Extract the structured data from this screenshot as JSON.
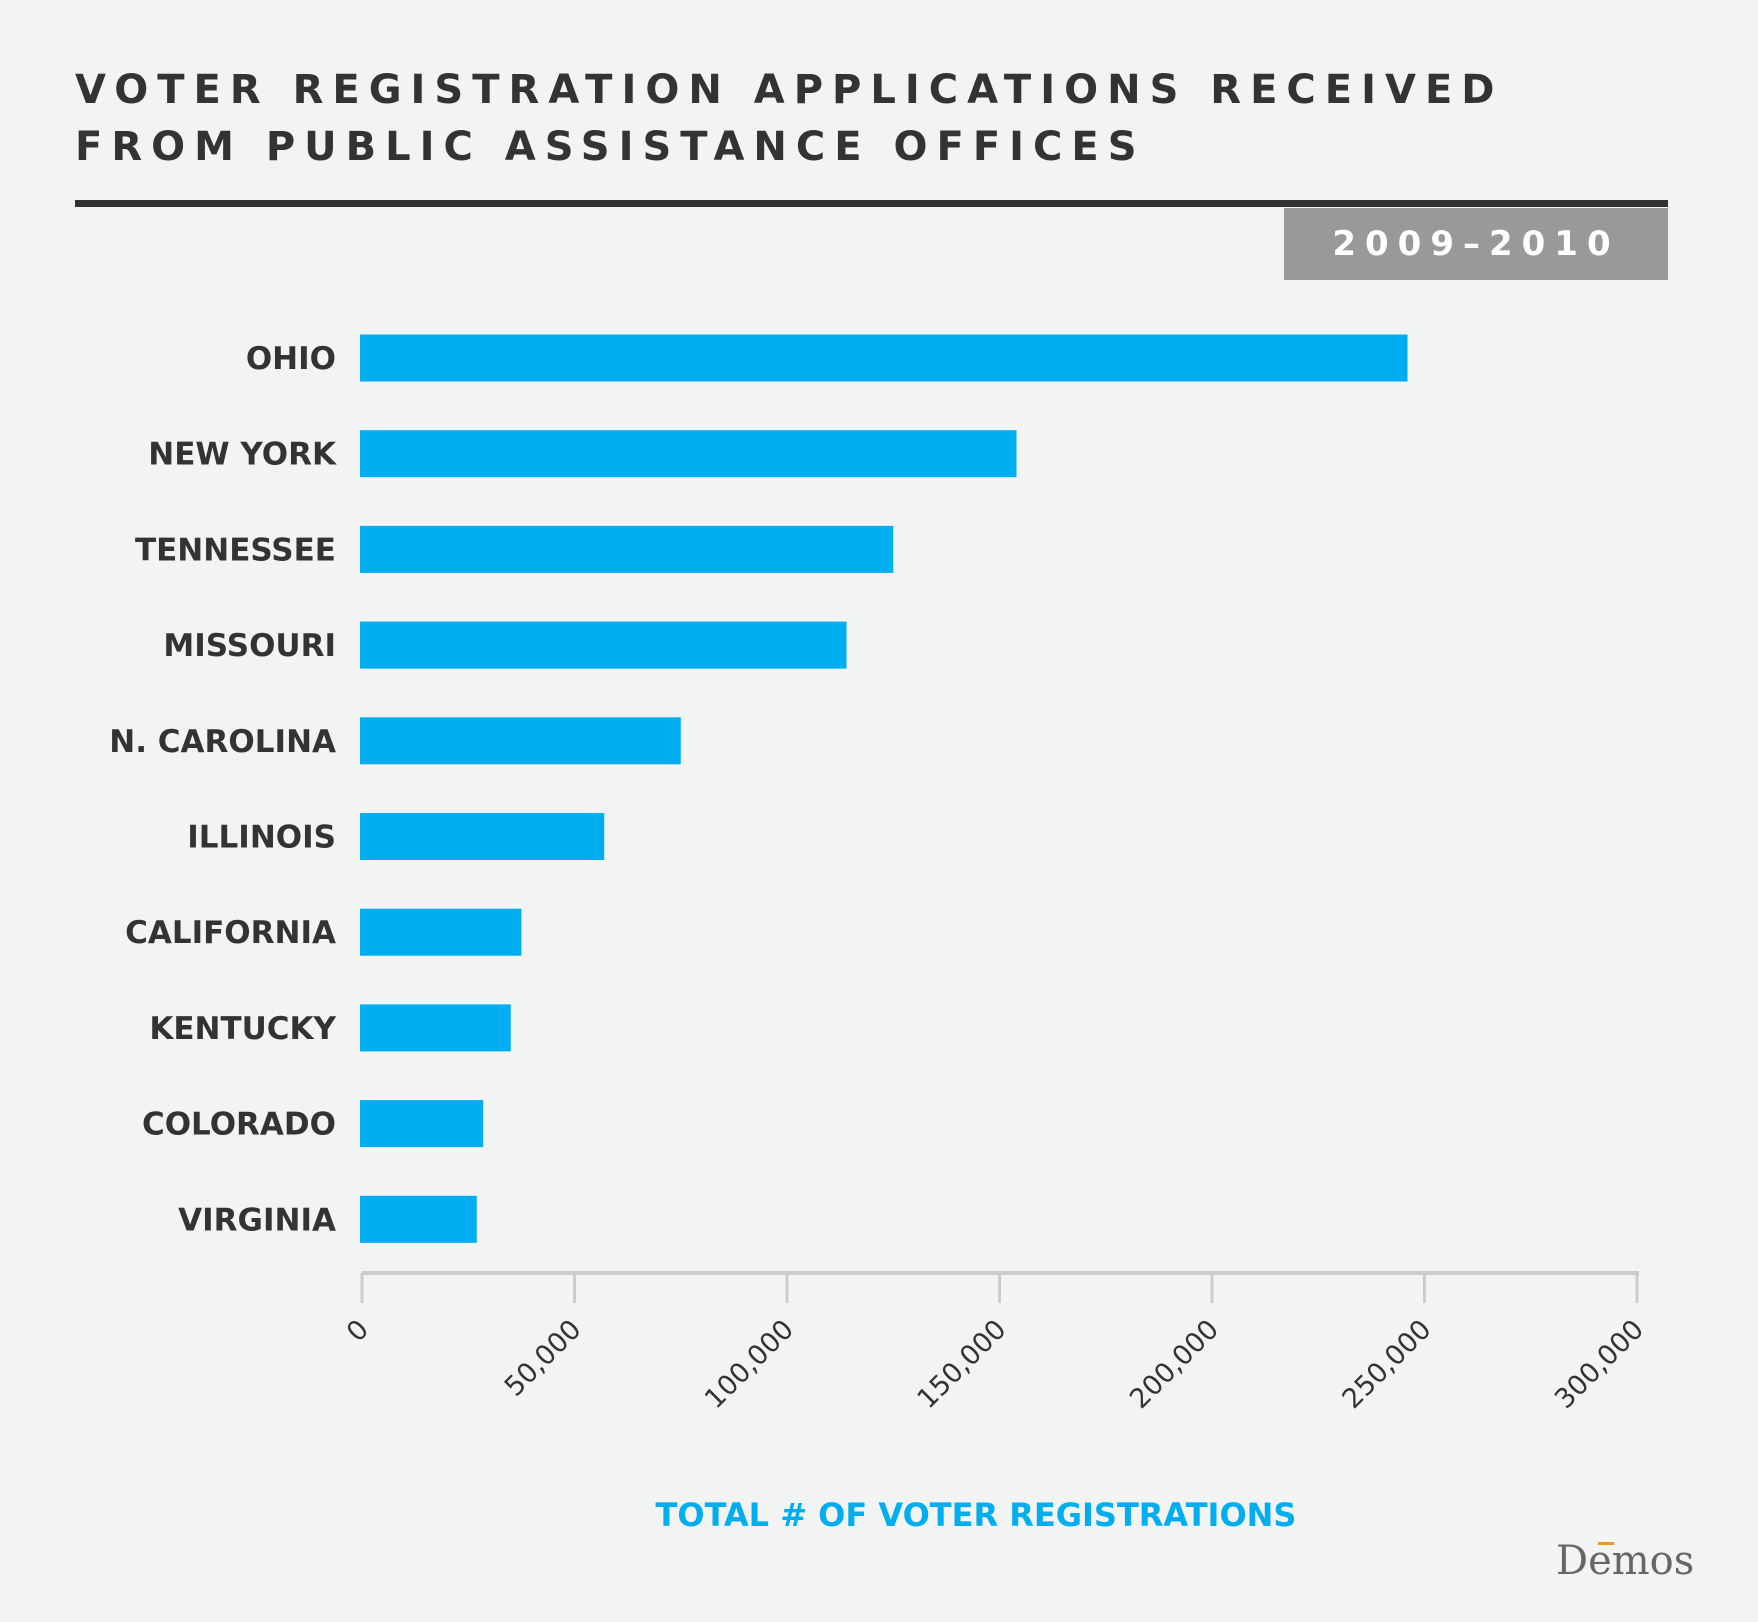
{
  "chart_data": {
    "type": "bar",
    "orientation": "horizontal",
    "title": "VOTER REGISTRATION APPLICATIONS RECEIVED FROM PUBLIC ASSISTANCE OFFICES",
    "title_lines": [
      "VOTER REGISTRATION APPLICATIONS RECEIVED",
      "FROM PUBLIC ASSISTANCE OFFICES"
    ],
    "subtitle": "2009–2010",
    "categories": [
      "OHIO",
      "NEW YORK",
      "TENNESSEE",
      "MISSOURI",
      "N. CAROLINA",
      "ILLINOIS",
      "CALIFORNIA",
      "KENTUCKY",
      "COLORADO",
      "VIRGINIA"
    ],
    "values": [
      246000,
      154000,
      125000,
      114000,
      75000,
      57000,
      37500,
      35000,
      28500,
      27000
    ],
    "xlabel": "TOTAL # OF VOTER REGISTRATIONS",
    "ylabel": "",
    "xlim": [
      0,
      300000
    ],
    "xticks": [
      "0",
      "50,000",
      "100,000",
      "150,000",
      "200,000",
      "250,000",
      "300,000"
    ],
    "grid": false,
    "colors": {
      "bar": "#00adef",
      "text": "#333333",
      "axis": "#cccccc",
      "badge": "#999999",
      "xlabel": "#00adef"
    }
  },
  "logo": {
    "text": "Dēmos",
    "accent": "#f7941d"
  }
}
